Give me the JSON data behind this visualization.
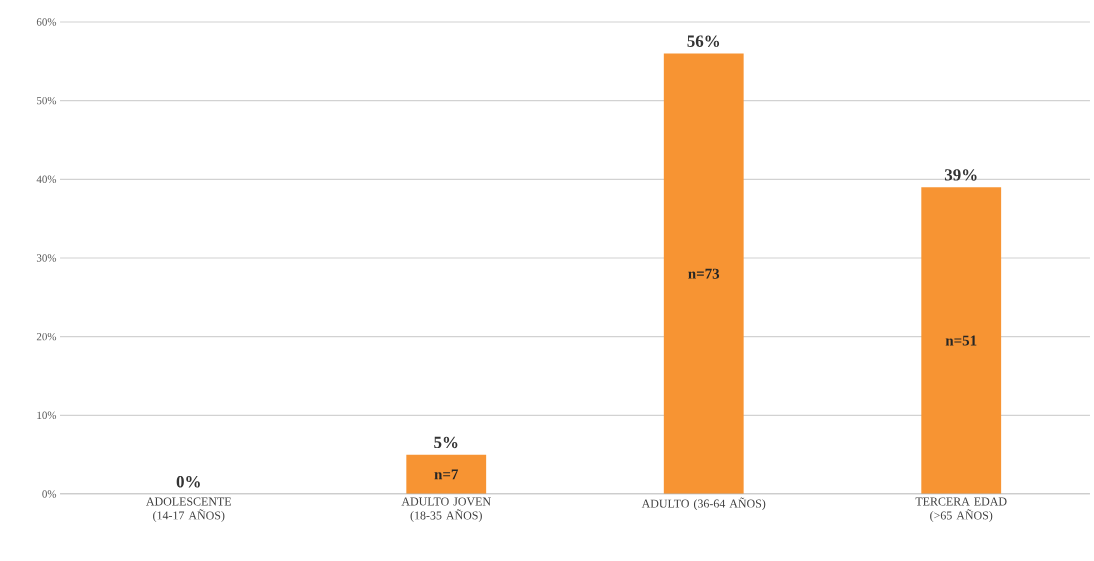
{
  "chart_data": {
    "type": "bar",
    "categories": [
      "ADOLESCENTE (14-17 AÑOS)",
      "ADULTO JOVEN (18-35 AÑOS)",
      "ADULTO (36-64 AÑOS)",
      "TERCERA EDAD (>65 AÑOS)"
    ],
    "values": [
      0,
      5,
      56,
      39
    ],
    "value_labels": [
      "0%",
      "5%",
      "56%",
      "39%"
    ],
    "color": "#f79433",
    "ylim": [
      0,
      60
    ],
    "yticks": [
      {
        "value": 0,
        "label": "0%"
      },
      {
        "value": 10,
        "label": "10%"
      },
      {
        "value": 20,
        "label": "20%"
      },
      {
        "value": 30,
        "label": "30%"
      },
      {
        "value": 40,
        "label": "40%"
      },
      {
        "value": 50,
        "label": "50%"
      },
      {
        "value": 60,
        "label": "60%"
      }
    ],
    "grid": "y",
    "annotations": [
      "n=7",
      "n=73",
      "n=51"
    ]
  }
}
